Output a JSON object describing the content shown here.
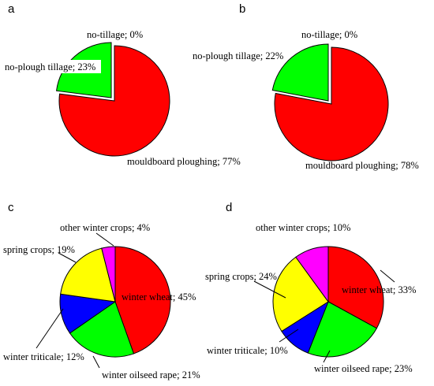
{
  "chart_data": [
    {
      "type": "pie",
      "panel_label": "a",
      "colors": [
        "#00ff00",
        "#ff0000",
        "#00ff00"
      ],
      "slices": [
        {
          "label": "no-tillage; 0%",
          "value": 0
        },
        {
          "label": "mouldboard ploughing; 77%",
          "value": 77
        },
        {
          "label": "no-plough tillage; 23%",
          "value": 23
        }
      ]
    },
    {
      "type": "pie",
      "panel_label": "b",
      "colors": [
        "#00ff00",
        "#ff0000",
        "#00ff00"
      ],
      "slices": [
        {
          "label": "no-tillage; 0%",
          "value": 0
        },
        {
          "label": "mouldboard ploughing; 78%",
          "value": 78
        },
        {
          "label": "no-plough tillage; 22%",
          "value": 22
        }
      ]
    },
    {
      "type": "pie",
      "panel_label": "c",
      "colors": [
        "#ff0000",
        "#00ff00",
        "#0000ff",
        "#ffff00",
        "#ff00ff"
      ],
      "slices": [
        {
          "label": "winter wheat; 45%",
          "value": 45
        },
        {
          "label": "winter oilseed rape; 21%",
          "value": 21
        },
        {
          "label": "winter triticale; 12%",
          "value": 12
        },
        {
          "label": "spring crops; 19%",
          "value": 19
        },
        {
          "label": "other winter crops; 4%",
          "value": 4
        }
      ]
    },
    {
      "type": "pie",
      "panel_label": "d",
      "colors": [
        "#ff0000",
        "#00ff00",
        "#0000ff",
        "#ffff00",
        "#ff00ff"
      ],
      "slices": [
        {
          "label": "winter wheat; 33%",
          "value": 33
        },
        {
          "label": "winter oilseed rape; 23%",
          "value": 23
        },
        {
          "label": "winter triticale; 10%",
          "value": 10
        },
        {
          "label": "spring crops; 24%",
          "value": 24
        },
        {
          "label": "other winter crops; 10%",
          "value": 10
        }
      ]
    }
  ]
}
